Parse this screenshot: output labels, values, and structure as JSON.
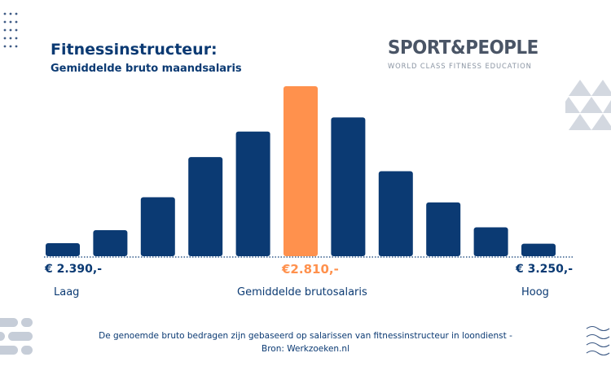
{
  "header": {
    "title": "Fitnessinstructeur:",
    "subtitle": "Gemiddelde bruto maandsalaris"
  },
  "logo": {
    "name": "SPORT&PEOPLE",
    "tagline": "WORLD CLASS FITNESS EDUCATION"
  },
  "colors": {
    "bar": "#0b3a73",
    "highlight": "#ff914d",
    "text": "#0b3a73",
    "deco": "#c6cdd8"
  },
  "chart_data": {
    "type": "bar",
    "values": [
      2.3,
      4.6,
      10.4,
      17.5,
      22.0,
      30.0,
      24.5,
      15.0,
      9.5,
      5.1,
      2.2
    ],
    "highlight_index": 5,
    "grid": false,
    "axis_labels": {
      "low_value": "€ 2.390,-",
      "mid_value": "€2.810,-",
      "high_value": "€ 3.250,-",
      "low_label": "Laag",
      "mid_label": "Gemiddelde brutosalaris",
      "high_label": "Hoog"
    }
  },
  "footer": {
    "line1": "De genoemde bruto bedragen zijn gebaseerd op salarissen van fitnessinstructeur in loondienst  -",
    "line2": "Bron: Werkzoeken.nl"
  }
}
